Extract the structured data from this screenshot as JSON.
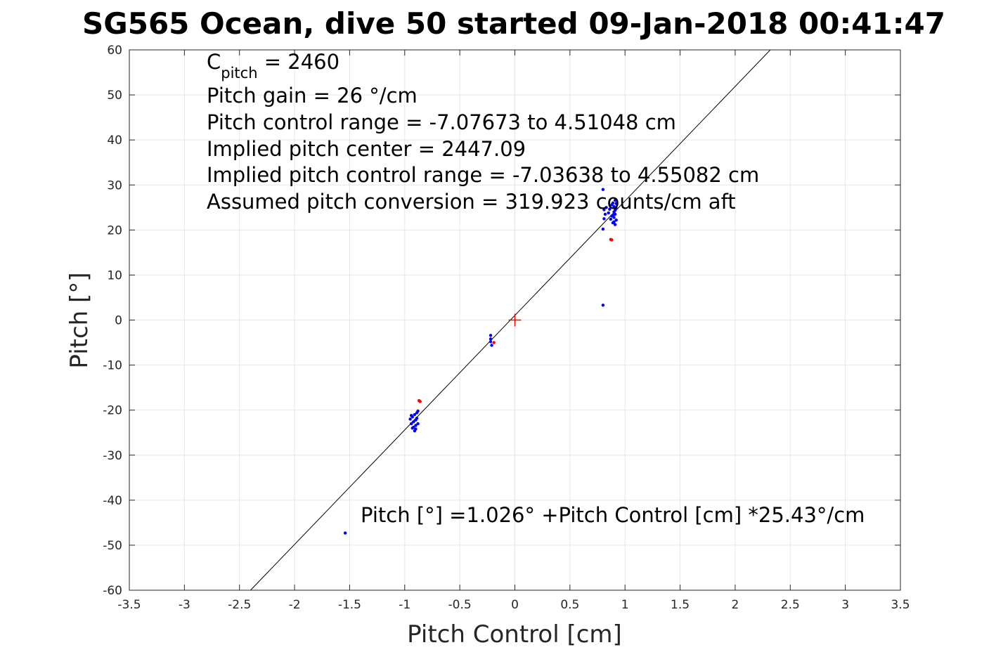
{
  "chart_data": {
    "type": "scatter",
    "title": "SG565 Ocean, dive 50 started 09-Jan-2018 00:41:47",
    "xlabel": "Pitch Control [cm]",
    "ylabel": "Pitch [°]",
    "xlim": [
      -3.5,
      3.5
    ],
    "ylim": [
      -60,
      60
    ],
    "xticks": [
      -3.5,
      -3,
      -2.5,
      -2,
      -1.5,
      -1,
      -0.5,
      0,
      0.5,
      1,
      1.5,
      2,
      2.5,
      3,
      3.5
    ],
    "yticks": [
      -60,
      -50,
      -40,
      -30,
      -20,
      -10,
      0,
      10,
      20,
      30,
      40,
      50,
      60
    ],
    "xtick_labels": [
      "-3.5",
      "-3",
      "-2.5",
      "-2",
      "-1.5",
      "-1",
      "-0.5",
      "0",
      "0.5",
      "1",
      "1.5",
      "2",
      "2.5",
      "3",
      "3.5"
    ],
    "ytick_labels": [
      "-60",
      "-50",
      "-40",
      "-30",
      "-20",
      "-10",
      "0",
      "10",
      "20",
      "30",
      "40",
      "50",
      "60"
    ],
    "grid": true,
    "fit_line": {
      "intercept": 1.026,
      "slope": 25.43
    },
    "center_marker": {
      "x": 0,
      "y": 0,
      "color": "#ff0000"
    },
    "annotations": {
      "c_pitch_main": "C",
      "c_pitch_sub": "pitch",
      "c_pitch_value": " = 2460",
      "lines": [
        "Pitch gain = 26 °/cm",
        "Pitch control range = -7.07673 to 4.51048 cm",
        "Implied pitch center = 2447.09",
        "Implied pitch control range = -7.03638 to 4.55082 cm",
        "Assumed pitch conversion = 319.923 counts/cm aft"
      ],
      "fit_text": "Pitch [°] =1.026° +Pitch Control [cm] *25.43°/cm"
    },
    "series": [
      {
        "color": "#0000ff",
        "points": [
          [
            0.8,
            29.0
          ],
          [
            0.81,
            24.5
          ],
          [
            0.82,
            23.5
          ],
          [
            0.81,
            22.5
          ],
          [
            0.83,
            25.0
          ],
          [
            0.8,
            20.2
          ],
          [
            0.85,
            23.8
          ],
          [
            0.86,
            24.6
          ],
          [
            0.87,
            22.4
          ],
          [
            0.88,
            25.6
          ],
          [
            0.88,
            23.1
          ],
          [
            0.89,
            21.6
          ],
          [
            0.89,
            26.0
          ],
          [
            0.9,
            24.0
          ],
          [
            0.9,
            22.8
          ],
          [
            0.9,
            25.2
          ],
          [
            0.91,
            21.2
          ],
          [
            0.91,
            26.6
          ],
          [
            0.91,
            23.5
          ],
          [
            0.92,
            24.8
          ],
          [
            0.92,
            22.2
          ],
          [
            0.92,
            25.9
          ],
          [
            0.89,
            23.3
          ],
          [
            0.9,
            21.8
          ],
          [
            0.91,
            24.4
          ],
          [
            0.8,
            3.3
          ],
          [
            -0.22,
            -3.4
          ],
          [
            -0.22,
            -4.2
          ],
          [
            -0.21,
            -5.6
          ],
          [
            -0.22,
            -4.8
          ],
          [
            -0.95,
            -22.0
          ],
          [
            -0.94,
            -23.0
          ],
          [
            -0.93,
            -24.0
          ],
          [
            -0.93,
            -21.5
          ],
          [
            -0.92,
            -22.6
          ],
          [
            -0.92,
            -23.8
          ],
          [
            -0.91,
            -21.0
          ],
          [
            -0.91,
            -24.6
          ],
          [
            -0.9,
            -22.2
          ],
          [
            -0.9,
            -23.4
          ],
          [
            -0.89,
            -20.6
          ],
          [
            -0.89,
            -21.8
          ],
          [
            -0.88,
            -23.0
          ],
          [
            -0.88,
            -20.2
          ],
          [
            -0.94,
            -21.2
          ],
          [
            -0.9,
            -24.2
          ],
          [
            -1.54,
            -47.3
          ]
        ]
      },
      {
        "color": "#ff0000",
        "points": [
          [
            0.87,
            17.9
          ],
          [
            0.88,
            17.8
          ],
          [
            -0.87,
            -17.9
          ],
          [
            -0.86,
            -18.1
          ],
          [
            -0.19,
            -5.0
          ]
        ]
      }
    ]
  }
}
